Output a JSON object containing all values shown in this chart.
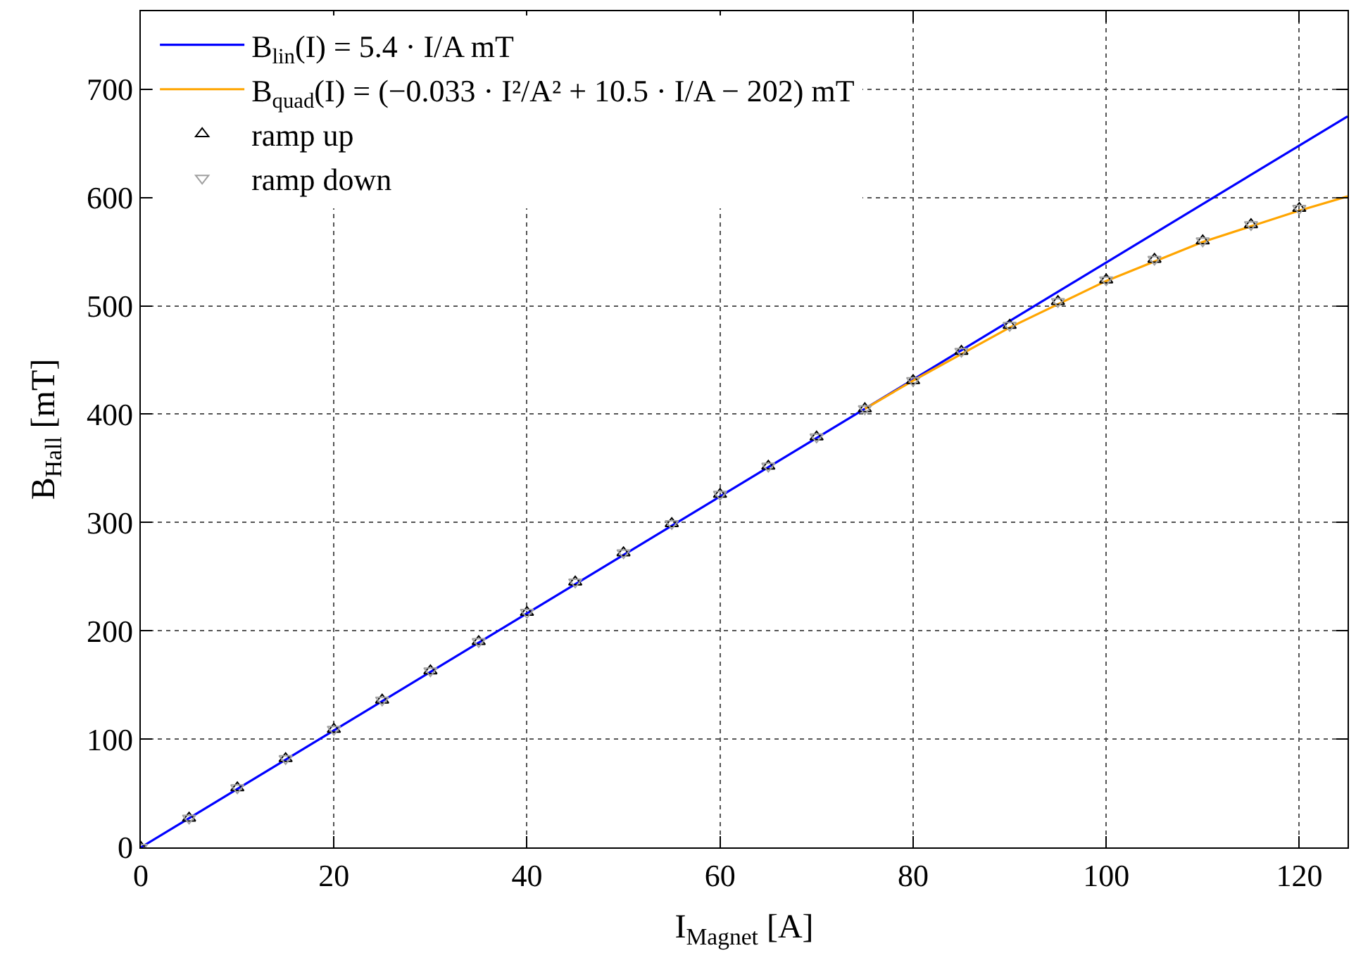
{
  "chart_data": {
    "type": "scatter",
    "xlabel": "I$_{Magnet}$ [A]",
    "ylabel": "B$_{Hall}$ [mT]",
    "xlim": [
      0,
      125
    ],
    "ylim": [
      0,
      772
    ],
    "xticks": [
      0,
      20,
      40,
      60,
      80,
      100,
      120
    ],
    "yticks": [
      0,
      100,
      200,
      300,
      400,
      500,
      600,
      700
    ],
    "grid": true,
    "legend": "top left",
    "series": [
      {
        "name": "B$_{lin}$(I) = 5.4 · I/A mT",
        "type": "line",
        "color": "#0000ff",
        "marker": "none",
        "line_style": "solid",
        "x": [
          0,
          125
        ],
        "values": [
          0,
          675
        ]
      },
      {
        "name": "B$_{quad}$(I) = (−0.033 · I²/A² + 10.5 · I/A − 202) mT",
        "type": "line",
        "color": "#ffa500",
        "marker": "none",
        "line_style": "solid",
        "x": [
          75,
          80,
          90,
          100,
          110,
          120,
          125
        ],
        "values": [
          405,
          431,
          480,
          523,
          559,
          588,
          601
        ]
      },
      {
        "name": "ramp up",
        "color": "#000000",
        "marker": "triangle",
        "x": [
          0,
          5,
          10,
          15,
          20,
          25,
          30,
          35,
          40,
          45,
          50,
          55,
          60,
          65,
          70,
          75,
          80,
          85,
          90,
          95,
          100,
          105,
          110,
          115,
          120
        ],
        "values": [
          0,
          27,
          55,
          82,
          109,
          136,
          163,
          190,
          217,
          245,
          272,
          299,
          326,
          352,
          379,
          405,
          431,
          458,
          482,
          504,
          524,
          543,
          560,
          575,
          590
        ]
      },
      {
        "name": "ramp down",
        "color": "#a0a0a0",
        "marker": "triangle-down",
        "x": [
          0,
          5,
          10,
          15,
          20,
          25,
          30,
          35,
          40,
          45,
          50,
          55,
          60,
          65,
          70,
          75,
          80,
          85,
          90,
          95,
          100,
          105,
          110,
          115,
          120
        ],
        "values": [
          0,
          27,
          55,
          82,
          109,
          136,
          163,
          190,
          217,
          245,
          272,
          299,
          326,
          352,
          379,
          405,
          431,
          458,
          482,
          504,
          524,
          543,
          560,
          575,
          590
        ]
      }
    ]
  }
}
